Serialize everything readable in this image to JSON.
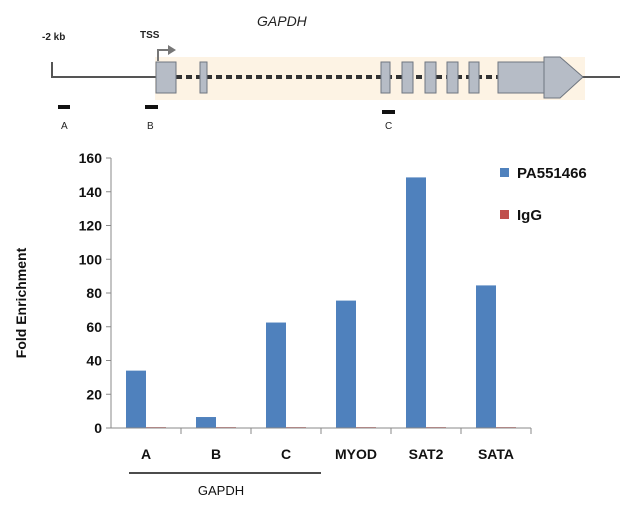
{
  "gene_diagram": {
    "gene_name": "GAPDH",
    "upstream_label": "-2 kb",
    "tss_label": "TSS",
    "primer_labels": [
      "A",
      "B",
      "C"
    ]
  },
  "chart_data": {
    "type": "bar",
    "categories": [
      "A",
      "B",
      "C",
      "MYOD",
      "SAT2",
      "SATA"
    ],
    "series": [
      {
        "name": "PA551466",
        "color": "#4F81BD",
        "values": [
          34,
          6.5,
          62.5,
          75.5,
          148.5,
          84.5
        ]
      },
      {
        "name": "IgG",
        "color": "#C0504D",
        "values": [
          0.5,
          0.5,
          0.5,
          0.5,
          0.5,
          0.5
        ]
      }
    ],
    "title": "",
    "xlabel": "",
    "ylabel": "Fold Enrichment",
    "ylim": [
      0,
      160
    ],
    "yticks": [
      0,
      20,
      40,
      60,
      80,
      100,
      120,
      140,
      160
    ],
    "group_label": {
      "text": "GAPDH",
      "categories": [
        "A",
        "B",
        "C"
      ]
    },
    "legend_position": "right",
    "grid": false
  }
}
